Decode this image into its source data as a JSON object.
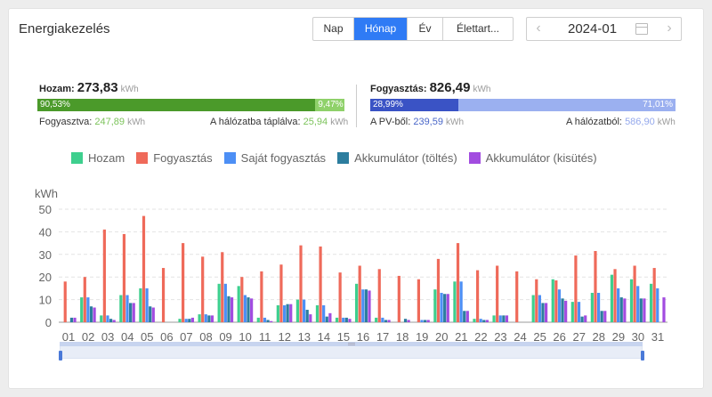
{
  "title": "Energiakezelés",
  "period_tabs": [
    {
      "label": "Nap",
      "active": false
    },
    {
      "label": "Hónap",
      "active": true
    },
    {
      "label": "Év",
      "active": false
    },
    {
      "label": "Élettart...",
      "active": false
    }
  ],
  "date": {
    "value": "2024-01",
    "prev_icon": "chevron-left-icon",
    "next_icon": "chevron-right-icon",
    "calendar_icon": "calendar-icon"
  },
  "yield": {
    "label": "Hozam:",
    "value": "273,83",
    "unit": "kWh",
    "self_pct": "90,53%",
    "self_frac": 0.9053,
    "feed_pct": "9,47%",
    "consumed_label": "Fogyasztva:",
    "consumed_value": "247,89",
    "consumed_unit": "kWh",
    "feed_label": "A hálózatba táplálva:",
    "feed_value": "25,94",
    "feed_unit": "kWh"
  },
  "consumption": {
    "label": "Fogyasztás:",
    "value": "826,49",
    "unit": "kWh",
    "pv_pct": "28,99%",
    "pv_frac": 0.2899,
    "grid_pct": "71,01%",
    "pv_label": "A PV-ből:",
    "pv_value": "239,59",
    "pv_unit": "kWh",
    "grid_label": "A hálózatból:",
    "grid_value": "586,90",
    "grid_unit": "kWh"
  },
  "colors": {
    "green": "#4b9a2a",
    "lightgreen": "#8fd16a",
    "blue": "#3a53c5",
    "lightblue": "#9bb0f0",
    "accent": "#2f7bf5"
  },
  "chart_data": {
    "type": "bar",
    "ylabel": "kWh",
    "ylim": [
      0,
      50
    ],
    "yticks": [
      0,
      10,
      20,
      30,
      40,
      50
    ],
    "categories": [
      "01",
      "02",
      "03",
      "04",
      "05",
      "06",
      "07",
      "08",
      "09",
      "10",
      "11",
      "12",
      "13",
      "14",
      "15",
      "16",
      "17",
      "18",
      "19",
      "20",
      "21",
      "22",
      "23",
      "24",
      "25",
      "26",
      "27",
      "28",
      "29",
      "30",
      "31"
    ],
    "series": [
      {
        "name": "Hozam",
        "color": "#3ecf8e",
        "values": [
          0,
          11,
          3,
          12,
          15,
          0,
          1.5,
          3.5,
          17,
          16,
          2,
          7.5,
          10,
          7.5,
          2,
          17,
          2,
          0,
          0,
          14.5,
          18,
          1.5,
          3,
          0,
          12,
          19,
          9,
          13,
          21,
          19,
          17
        ]
      },
      {
        "name": "Fogyasztás",
        "color": "#ef6a5a",
        "values": [
          18,
          20,
          41,
          39,
          47,
          24,
          35,
          29,
          31,
          20,
          22.5,
          25.5,
          34,
          33.5,
          22,
          25,
          23.5,
          20.5,
          19,
          28,
          35,
          23,
          25,
          22.5,
          19,
          18.5,
          29.5,
          31.5,
          23.5,
          25,
          24
        ]
      },
      {
        "name": "Saját fogyasztás",
        "color": "#4d8ff5",
        "values": [
          0,
          11,
          3,
          12,
          15,
          0,
          1.5,
          3.5,
          17,
          12,
          2,
          7.5,
          10,
          7.5,
          2,
          14.5,
          2,
          0,
          1,
          13,
          18,
          1.5,
          3,
          0,
          12,
          14.5,
          9,
          13,
          15,
          16,
          15
        ]
      },
      {
        "name": "Akkumulátor (töltés)",
        "color": "#2c7d9e",
        "values": [
          2,
          7,
          1.5,
          8.5,
          7,
          0,
          1.5,
          3,
          11.5,
          11,
          1,
          8,
          5.5,
          2.5,
          2,
          14.5,
          1,
          1.5,
          1,
          12.5,
          5,
          1,
          3,
          0,
          8.5,
          10.5,
          2.5,
          5,
          11,
          10.5,
          0
        ]
      },
      {
        "name": "Akkumulátor (kisütés)",
        "color": "#a24ce0",
        "values": [
          2,
          6.5,
          1,
          8.5,
          6.5,
          0,
          2,
          3,
          11,
          10.5,
          0.5,
          8,
          3.5,
          4,
          1.5,
          14,
          1,
          1,
          1,
          12.5,
          5,
          1,
          3,
          0,
          8.5,
          9.5,
          3,
          5,
          10.5,
          10.5,
          11
        ]
      }
    ]
  }
}
